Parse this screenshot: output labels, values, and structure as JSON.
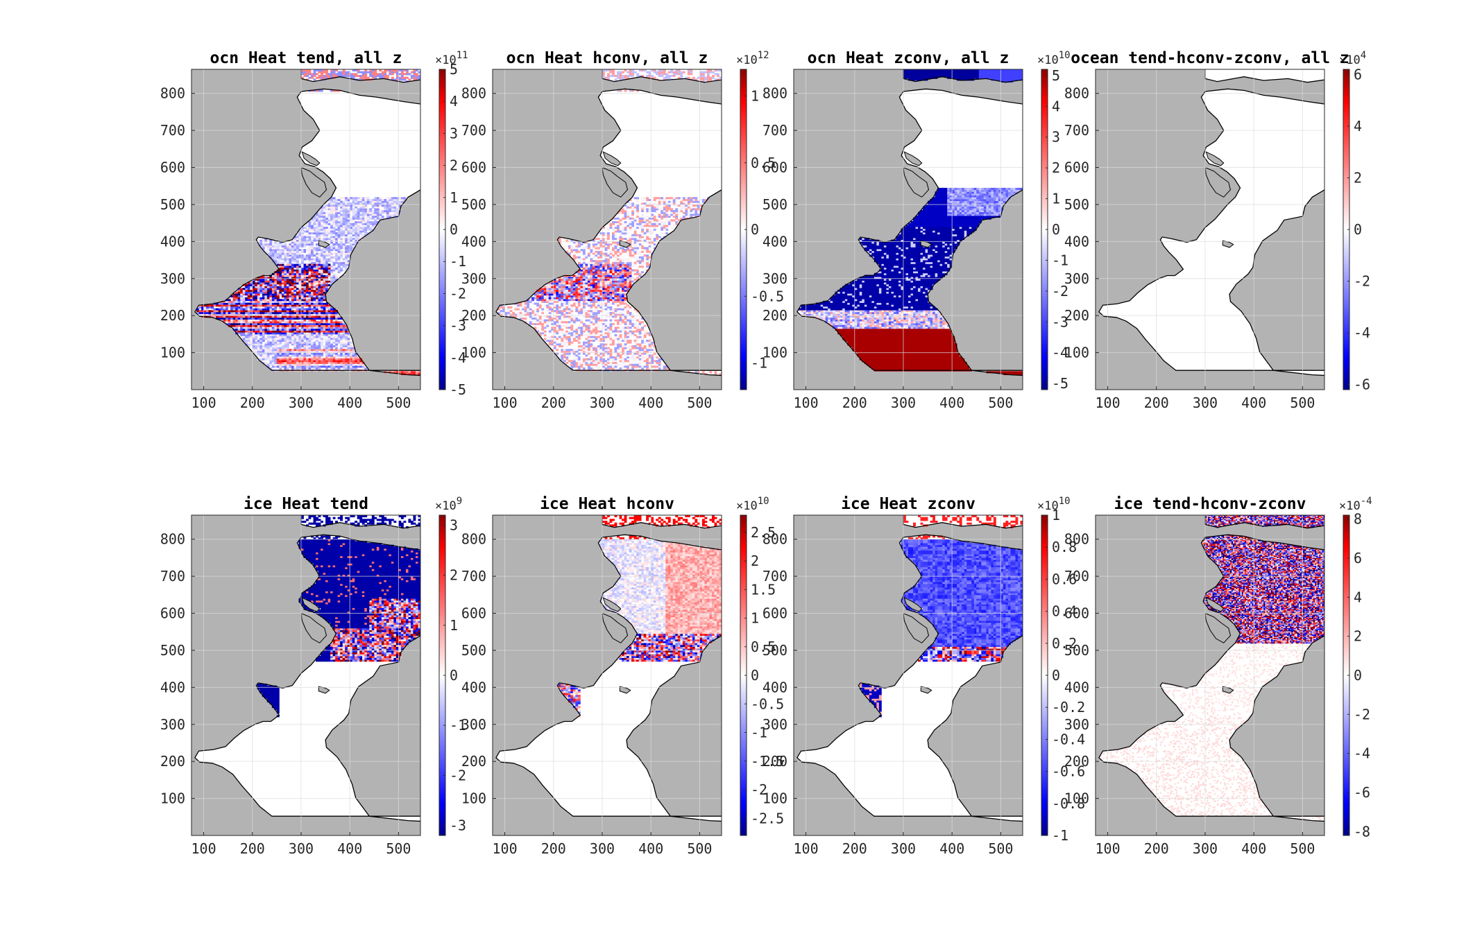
{
  "chart_data": [
    {
      "type": "heatmap",
      "title": "ocn Heat tend, all z",
      "xticks": [
        "100",
        "200",
        "300",
        "400",
        "500"
      ],
      "yticks": [
        "100",
        "200",
        "300",
        "400",
        "500",
        "600",
        "700",
        "800"
      ],
      "xlim": [
        75,
        545
      ],
      "ylim": [
        0,
        865
      ],
      "colorbar": {
        "exponent": "11",
        "clim": [
          -5,
          5
        ],
        "ticks": [
          {
            "v": 5,
            "t": "5"
          },
          {
            "v": 4,
            "t": "4"
          },
          {
            "v": 3,
            "t": "3"
          },
          {
            "v": 2,
            "t": "2"
          },
          {
            "v": 1,
            "t": "1"
          },
          {
            "v": 0,
            "t": "0"
          },
          {
            "v": -1,
            "t": "-1"
          },
          {
            "v": -2,
            "t": "-2"
          },
          {
            "v": -3,
            "t": "-3"
          },
          {
            "v": -4,
            "t": "-4"
          },
          {
            "v": -5,
            "t": "-5"
          }
        ]
      },
      "colormap": [
        "#00008b",
        "#ffffff",
        "#8b0000"
      ],
      "pattern": "ocn_tend"
    },
    {
      "type": "heatmap",
      "title": "ocn Heat hconv, all z",
      "xticks": [
        "100",
        "200",
        "300",
        "400",
        "500"
      ],
      "yticks": [
        "100",
        "200",
        "300",
        "400",
        "500",
        "600",
        "700",
        "800"
      ],
      "xlim": [
        75,
        545
      ],
      "ylim": [
        0,
        865
      ],
      "colorbar": {
        "exponent": "12",
        "clim": [
          -1.2,
          1.2
        ],
        "ticks": [
          {
            "v": 1,
            "t": "1"
          },
          {
            "v": 0.5,
            "t": "0.5"
          },
          {
            "v": 0,
            "t": "0"
          },
          {
            "v": -0.5,
            "t": "-0.5"
          },
          {
            "v": -1,
            "t": "-1"
          }
        ]
      },
      "colormap": [
        "#00008b",
        "#ffffff",
        "#8b0000"
      ],
      "pattern": "ocn_hconv"
    },
    {
      "type": "heatmap",
      "title": "ocn Heat zconv, all z",
      "xticks": [
        "100",
        "200",
        "300",
        "400",
        "500"
      ],
      "yticks": [
        "100",
        "200",
        "300",
        "400",
        "500",
        "600",
        "700",
        "800"
      ],
      "xlim": [
        75,
        545
      ],
      "ylim": [
        0,
        865
      ],
      "colorbar": {
        "exponent": "10",
        "clim": [
          -5.2,
          5.2
        ],
        "ticks": [
          {
            "v": 5,
            "t": "5"
          },
          {
            "v": 4,
            "t": "4"
          },
          {
            "v": 3,
            "t": "3"
          },
          {
            "v": 2,
            "t": "2"
          },
          {
            "v": 1,
            "t": "1"
          },
          {
            "v": 0,
            "t": "0"
          },
          {
            "v": -1,
            "t": "-1"
          },
          {
            "v": -2,
            "t": "-2"
          },
          {
            "v": -3,
            "t": "-3"
          },
          {
            "v": -4,
            "t": "-4"
          },
          {
            "v": -5,
            "t": "-5"
          }
        ]
      },
      "colormap": [
        "#00008b",
        "#ffffff",
        "#8b0000"
      ],
      "pattern": "ocn_zconv"
    },
    {
      "type": "heatmap",
      "title": "ocean tend-hconv-zconv, all z",
      "xticks": [
        "100",
        "200",
        "300",
        "400",
        "500"
      ],
      "yticks": [
        "100",
        "200",
        "300",
        "400",
        "500",
        "600",
        "700",
        "800"
      ],
      "xlim": [
        75,
        545
      ],
      "ylim": [
        0,
        865
      ],
      "colorbar": {
        "exponent": "4",
        "clim": [
          -6.2,
          6.2
        ],
        "ticks": [
          {
            "v": 6,
            "t": "6"
          },
          {
            "v": 4,
            "t": "4"
          },
          {
            "v": 2,
            "t": "2"
          },
          {
            "v": 0,
            "t": "0"
          },
          {
            "v": -2,
            "t": "-2"
          },
          {
            "v": -4,
            "t": "-4"
          },
          {
            "v": -6,
            "t": "-6"
          }
        ]
      },
      "colormap": [
        "#00008b",
        "#ffffff",
        "#8b0000"
      ],
      "pattern": "ocn_resid"
    },
    {
      "type": "heatmap",
      "title": "ice Heat tend",
      "xticks": [
        "100",
        "200",
        "300",
        "400",
        "500"
      ],
      "yticks": [
        "100",
        "200",
        "300",
        "400",
        "500",
        "600",
        "700",
        "800"
      ],
      "xlim": [
        75,
        545
      ],
      "ylim": [
        0,
        865
      ],
      "colorbar": {
        "exponent": "9",
        "clim": [
          -3.2,
          3.2
        ],
        "ticks": [
          {
            "v": 3,
            "t": "3"
          },
          {
            "v": 2,
            "t": "2"
          },
          {
            "v": 1,
            "t": "1"
          },
          {
            "v": 0,
            "t": "0"
          },
          {
            "v": -1,
            "t": "-1"
          },
          {
            "v": -2,
            "t": "-2"
          },
          {
            "v": -3,
            "t": "-3"
          }
        ]
      },
      "colormap": [
        "#00008b",
        "#ffffff",
        "#8b0000"
      ],
      "pattern": "ice_tend"
    },
    {
      "type": "heatmap",
      "title": "ice Heat hconv",
      "xticks": [
        "100",
        "200",
        "300",
        "400",
        "500"
      ],
      "yticks": [
        "100",
        "200",
        "300",
        "400",
        "500",
        "600",
        "700",
        "800"
      ],
      "xlim": [
        75,
        545
      ],
      "ylim": [
        0,
        865
      ],
      "colorbar": {
        "exponent": "10",
        "clim": [
          -2.8,
          2.8
        ],
        "ticks": [
          {
            "v": 2.5,
            "t": "2.5"
          },
          {
            "v": 2,
            "t": "2"
          },
          {
            "v": 1.5,
            "t": "1.5"
          },
          {
            "v": 1,
            "t": "1"
          },
          {
            "v": 0.5,
            "t": "0.5"
          },
          {
            "v": 0,
            "t": "0"
          },
          {
            "v": -0.5,
            "t": "-0.5"
          },
          {
            "v": -1,
            "t": "-1"
          },
          {
            "v": -1.5,
            "t": "-1.5"
          },
          {
            "v": -2,
            "t": "-2"
          },
          {
            "v": -2.5,
            "t": "-2.5"
          }
        ]
      },
      "colormap": [
        "#00008b",
        "#ffffff",
        "#8b0000"
      ],
      "pattern": "ice_hconv"
    },
    {
      "type": "heatmap",
      "title": "ice Heat zconv",
      "xticks": [
        "100",
        "200",
        "300",
        "400",
        "500"
      ],
      "yticks": [
        "100",
        "200",
        "300",
        "400",
        "500",
        "600",
        "700",
        "800"
      ],
      "xlim": [
        75,
        545
      ],
      "ylim": [
        0,
        865
      ],
      "colorbar": {
        "exponent": "10",
        "clim": [
          -1,
          1
        ],
        "ticks": [
          {
            "v": 1,
            "t": "1"
          },
          {
            "v": 0.8,
            "t": "0.8"
          },
          {
            "v": 0.6,
            "t": "0.6"
          },
          {
            "v": 0.4,
            "t": "0.4"
          },
          {
            "v": 0.2,
            "t": "0.2"
          },
          {
            "v": 0,
            "t": "0"
          },
          {
            "v": -0.2,
            "t": "-0.2"
          },
          {
            "v": -0.4,
            "t": "-0.4"
          },
          {
            "v": -0.6,
            "t": "-0.6"
          },
          {
            "v": -0.8,
            "t": "-0.8"
          },
          {
            "v": -1,
            "t": "-1"
          }
        ]
      },
      "colormap": [
        "#00008b",
        "#ffffff",
        "#8b0000"
      ],
      "pattern": "ice_zconv"
    },
    {
      "type": "heatmap",
      "title": "ice tend-hconv-zconv",
      "xticks": [
        "100",
        "200",
        "300",
        "400",
        "500"
      ],
      "yticks": [
        "100",
        "200",
        "300",
        "400",
        "500",
        "600",
        "700",
        "800"
      ],
      "xlim": [
        75,
        545
      ],
      "ylim": [
        0,
        865
      ],
      "colorbar": {
        "exponent": "-4",
        "clim": [
          -8.2,
          8.2
        ],
        "ticks": [
          {
            "v": 8,
            "t": "8"
          },
          {
            "v": 6,
            "t": "6"
          },
          {
            "v": 4,
            "t": "4"
          },
          {
            "v": 2,
            "t": "2"
          },
          {
            "v": 0,
            "t": "0"
          },
          {
            "v": -2,
            "t": "-2"
          },
          {
            "v": -4,
            "t": "-4"
          },
          {
            "v": -6,
            "t": "-6"
          },
          {
            "v": -8,
            "t": "-8"
          }
        ]
      },
      "colormap": [
        "#00008b",
        "#ffffff",
        "#8b0000"
      ],
      "pattern": "ice_resid"
    }
  ],
  "colors": {
    "land": "#b3b3b3",
    "ocean": "#ffffff",
    "neg": "#00008b",
    "pos": "#8b0000",
    "grid": "#dcdcdc"
  }
}
